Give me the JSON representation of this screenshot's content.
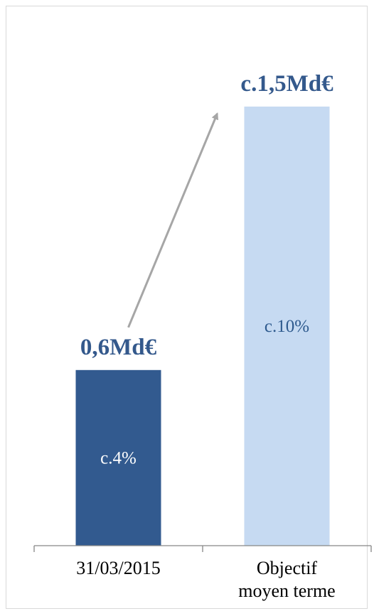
{
  "chart_data": {
    "type": "bar",
    "categories": [
      "31/03/2015",
      "Objectif moyen terme"
    ],
    "category_lines": [
      [
        "31/03/2015"
      ],
      [
        "Objectif",
        "moyen terme"
      ]
    ],
    "values": [
      0.6,
      1.5
    ],
    "unit": "Md€",
    "top_labels": [
      "0,6Md€",
      "c.1,5Md€"
    ],
    "inner_labels": [
      "c.4%",
      "c.10%"
    ],
    "colors": [
      "#325a8f",
      "#c6daf2"
    ],
    "label_color": "#34598c",
    "inner_label_colors": [
      "#ffffff",
      "#2e5a8e"
    ],
    "arrow_color": "#a6a6a6",
    "ylim": [
      0,
      1.5
    ],
    "grid": false,
    "legend": "none",
    "title": "",
    "xlabel": "",
    "ylabel": ""
  }
}
